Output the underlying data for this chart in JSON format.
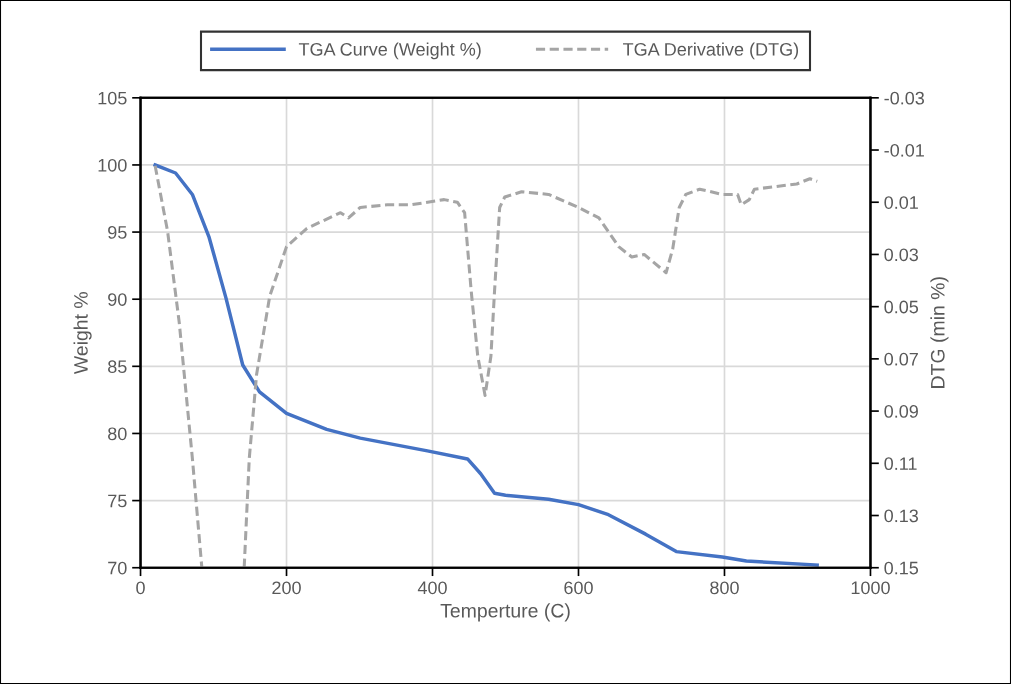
{
  "chart_data": {
    "type": "line",
    "xlabel": "Temperture (C)",
    "ylabel": "Weight %",
    "y2label": "DTG (min %)",
    "xlim": [
      0,
      1000
    ],
    "xticks": [
      0,
      200,
      400,
      600,
      800,
      1000
    ],
    "ylim": [
      70,
      105
    ],
    "yticks": [
      70,
      75,
      80,
      85,
      90,
      95,
      100,
      105
    ],
    "y2lim": [
      0.15,
      -0.03
    ],
    "y2ticks": [
      -0.03,
      -0.01,
      0.01,
      0.03,
      0.05,
      0.07,
      0.09,
      0.11,
      0.13,
      0.15
    ],
    "grid": true,
    "legend": "top",
    "series": [
      {
        "name": "TGA Curve (Weight %)",
        "color": "#4472c4",
        "line_style": "solid",
        "x": [
          20,
          48,
          71,
          94,
          117,
          140,
          163,
          200,
          255,
          301,
          393,
          448,
          466,
          485,
          500,
          559,
          600,
          641,
          692,
          734,
          797,
          830,
          927
        ],
        "values": [
          100,
          99.4,
          97.8,
          94.6,
          90.1,
          85.1,
          83.1,
          81.5,
          80.3,
          79.65,
          78.7,
          78.1,
          77.0,
          75.55,
          75.4,
          75.1,
          74.7,
          73.95,
          72.5,
          71.2,
          70.8,
          70.5,
          70.2
        ]
      },
      {
        "name": "TGA Derivative (DTG)",
        "color": "#a5a5a5",
        "line_style": "dashed",
        "axis": "y2",
        "x": [
          20,
          37,
          53,
          71,
          84,
          113,
          142,
          149,
          159,
          177,
          200,
          228,
          274,
          285,
          301,
          338,
          370,
          416,
          434,
          444,
          453,
          462,
          472,
          480,
          485,
          492,
          499,
          522,
          559,
          600,
          628,
          655,
          673,
          690,
          720,
          729,
          738,
          747,
          766,
          797,
          818,
          823,
          834,
          841,
          899,
          917,
          927
        ],
        "values": [
          -0.004,
          0.021,
          0.056,
          0.108,
          0.15,
          null,
          0.15,
          0.108,
          0.076,
          0.046,
          0.027,
          0.02,
          0.014,
          0.016,
          0.012,
          0.011,
          0.011,
          0.009,
          0.01,
          0.014,
          0.044,
          0.069,
          0.084,
          0.069,
          0.044,
          0.012,
          0.008,
          0.006,
          0.007,
          0.012,
          0.016,
          0.027,
          0.031,
          0.03,
          0.037,
          0.028,
          0.012,
          0.007,
          0.005,
          0.007,
          0.007,
          0.011,
          0.009,
          0.005,
          0.003,
          0.001,
          0.002
        ]
      }
    ]
  }
}
